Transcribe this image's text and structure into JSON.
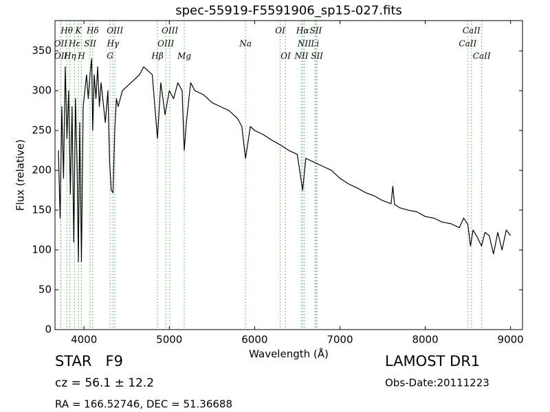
{
  "chart_data": {
    "type": "line",
    "title": "spec-55919-F5591906_sp15-027.fits",
    "x_label": "Wavelength (Å)",
    "y_label": "Flux (relative)",
    "xlim": [
      3660,
      9140
    ],
    "ylim": [
      0,
      388
    ],
    "xticks": [
      4000,
      5000,
      6000,
      7000,
      8000,
      9000
    ],
    "yticks": [
      0,
      50,
      100,
      150,
      200,
      250,
      300,
      350
    ],
    "color": "#000000",
    "line_color": "#44aa44",
    "x": [
      3700,
      3720,
      3740,
      3760,
      3780,
      3800,
      3820,
      3840,
      3860,
      3880,
      3900,
      3920,
      3934,
      3950,
      3970,
      3990,
      4010,
      4030,
      4050,
      4070,
      4090,
      4102,
      4120,
      4140,
      4160,
      4180,
      4200,
      4220,
      4250,
      4280,
      4300,
      4320,
      4340,
      4360,
      4380,
      4400,
      4450,
      4500,
      4550,
      4600,
      4650,
      4700,
      4750,
      4800,
      4861,
      4900,
      4950,
      5000,
      5050,
      5100,
      5150,
      5175,
      5200,
      5250,
      5300,
      5400,
      5500,
      5600,
      5700,
      5800,
      5850,
      5893,
      5950,
      6000,
      6100,
      6200,
      6300,
      6400,
      6500,
      6563,
      6600,
      6700,
      6800,
      6900,
      7000,
      7100,
      7200,
      7300,
      7400,
      7500,
      7600,
      7620,
      7640,
      7700,
      7800,
      7900,
      8000,
      8100,
      8200,
      8300,
      8400,
      8450,
      8500,
      8530,
      8560,
      8600,
      8660,
      8700,
      8750,
      8800,
      8850,
      8900,
      8950,
      9000
    ],
    "values": [
      225,
      140,
      280,
      190,
      330,
      240,
      300,
      170,
      280,
      110,
      290,
      200,
      85,
      260,
      85,
      280,
      300,
      320,
      290,
      320,
      340,
      250,
      320,
      290,
      330,
      280,
      310,
      290,
      260,
      300,
      210,
      175,
      172,
      250,
      290,
      280,
      300,
      305,
      310,
      315,
      320,
      330,
      325,
      320,
      240,
      310,
      270,
      300,
      290,
      310,
      300,
      225,
      260,
      310,
      300,
      295,
      285,
      280,
      275,
      265,
      255,
      215,
      255,
      250,
      245,
      238,
      232,
      225,
      220,
      175,
      215,
      210,
      205,
      200,
      190,
      183,
      178,
      172,
      168,
      162,
      158,
      180,
      157,
      153,
      150,
      148,
      142,
      140,
      135,
      133,
      128,
      140,
      132,
      105,
      125,
      118,
      105,
      122,
      118,
      95,
      122,
      100,
      125,
      118
    ],
    "line_labels": [
      [
        {
          "name": "Hθ",
          "wavelength": 3798
        },
        {
          "name": "K",
          "wavelength": 3934
        },
        {
          "name": "Hδ",
          "wavelength": 4102
        },
        {
          "name": "OIII",
          "wavelength": 4363
        },
        {
          "name": "OIII",
          "wavelength": 5007
        },
        {
          "name": "OI",
          "wavelength": 6300
        },
        {
          "name": "Hα",
          "wavelength": 6563
        },
        {
          "name": "SII",
          "wavelength": 6717
        },
        {
          "name": "CaII",
          "wavelength": 8542
        }
      ],
      [
        {
          "name": "OII",
          "wavelength": 3727
        },
        {
          "name": "Hε",
          "wavelength": 3889
        },
        {
          "name": "SII",
          "wavelength": 4072
        },
        {
          "name": "Hγ",
          "wavelength": 4340
        },
        {
          "name": "OIII",
          "wavelength": 4959
        },
        {
          "name": "Na",
          "wavelength": 5893
        },
        {
          "name": "NII",
          "wavelength": 6583
        },
        {
          "name": "Li",
          "wavelength": 6708
        },
        {
          "name": "CaII",
          "wavelength": 8498
        }
      ],
      [
        {
          "name": "OII",
          "wavelength": 3729
        },
        {
          "name": "Hη",
          "wavelength": 3835
        },
        {
          "name": "H",
          "wavelength": 3970
        },
        {
          "name": "G",
          "wavelength": 4305
        },
        {
          "name": "Hβ",
          "wavelength": 4861
        },
        {
          "name": "Mg",
          "wavelength": 5175
        },
        {
          "name": "OI",
          "wavelength": 6364
        },
        {
          "name": "NII",
          "wavelength": 6548
        },
        {
          "name": "SII",
          "wavelength": 6731
        },
        {
          "name": "CaII",
          "wavelength": 8662
        }
      ]
    ],
    "annotations": {
      "object": "STAR   F9",
      "redshift": "cz = 56.1 ± 12.2",
      "coords": "RA = 166.52746, DEC = 51.36688",
      "survey": "LAMOST DR1",
      "date": "Obs-Date:20111223"
    }
  }
}
